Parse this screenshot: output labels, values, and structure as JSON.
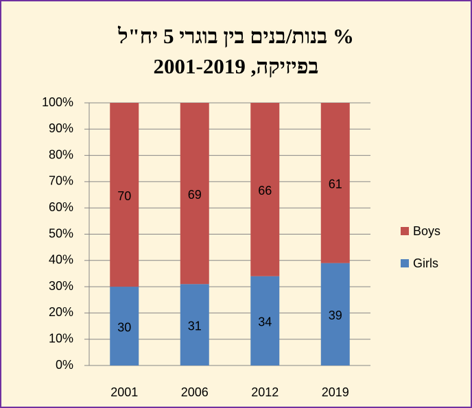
{
  "chart_data": {
    "type": "stacked_bar",
    "title": [
      "% בנות/בנים בין בוגרי 5 יח\"ל",
      "בפיזיקה, 2001-2019"
    ],
    "categories": [
      "2001",
      "2006",
      "2012",
      "2019"
    ],
    "series": [
      {
        "name": "Girls",
        "color": "#4f81bd",
        "values": [
          30,
          31,
          34,
          39
        ]
      },
      {
        "name": "Boys",
        "color": "#c0504d",
        "values": [
          70,
          69,
          66,
          61
        ]
      }
    ],
    "ylim": [
      0,
      100
    ],
    "yticks": [
      {
        "value": 0,
        "label": "0%"
      },
      {
        "value": 10,
        "label": "10%"
      },
      {
        "value": 20,
        "label": "20%"
      },
      {
        "value": 30,
        "label": "30%"
      },
      {
        "value": 40,
        "label": "40%"
      },
      {
        "value": 50,
        "label": "50%"
      },
      {
        "value": 60,
        "label": "60%"
      },
      {
        "value": 70,
        "label": "70%"
      },
      {
        "value": 80,
        "label": "80%"
      },
      {
        "value": 90,
        "label": "90%"
      },
      {
        "value": 100,
        "label": "100%"
      }
    ],
    "grid": true,
    "legend": "right"
  }
}
